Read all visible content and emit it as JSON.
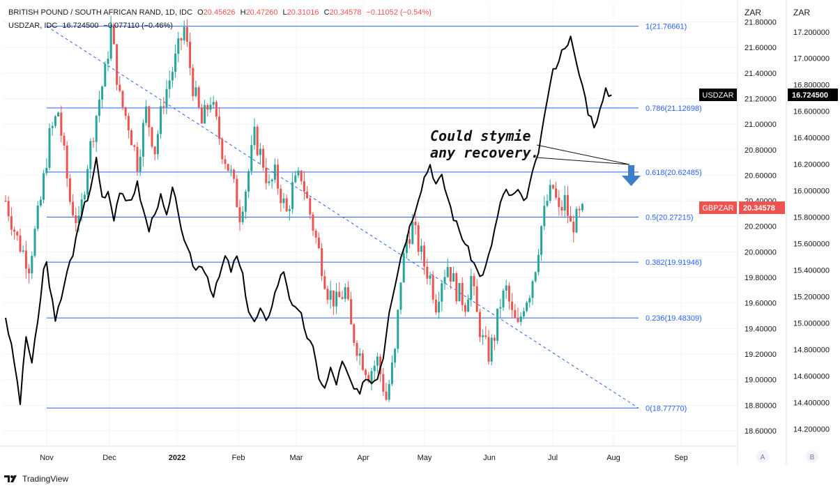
{
  "header": {
    "line1": {
      "symbol": "BRITISH POUND / SOUTH AFRICAN RAND, 1D, IDC",
      "o_label": "O",
      "o": "20.45626",
      "h_label": "H",
      "h": "20.47260",
      "l_label": "L",
      "l": "20.31016",
      "c_label": "C",
      "c": "20.34578",
      "chg": "−0.11052 (−0.54%)"
    },
    "line2": {
      "symbol": "USDZAR, IDC",
      "value": "16.724500",
      "chg": "−0.077110 (−0.46%)"
    }
  },
  "annotation": {
    "line1": "Could stymie",
    "line2": "any recovery."
  },
  "footer": {
    "brand": "TradingView"
  },
  "colors": {
    "up": "#26a69a",
    "down": "#ef5350",
    "fib": "#2962ff",
    "usdzar": "#000000",
    "arrow": "#3d7fc7",
    "gbpzar_label": "#ef5350"
  },
  "chart_data": {
    "type": "line",
    "x_axis": {
      "labels": [
        "Nov",
        "Dec",
        "2022",
        "Feb",
        "Mar",
        "Apr",
        "May",
        "Jun",
        "Jul",
        "Aug",
        "Sep"
      ]
    },
    "y_axis_a": {
      "title": "ZAR",
      "ticks": [
        "18.60000",
        "18.80000",
        "19.00000",
        "19.20000",
        "19.40000",
        "19.60000",
        "19.80000",
        "20.00000",
        "20.20000",
        "20.40000",
        "20.60000",
        "20.80000",
        "21.00000",
        "21.20000",
        "21.40000",
        "21.60000",
        "21.80000"
      ],
      "range": [
        18.48,
        21.95
      ],
      "button": "A"
    },
    "y_axis_b": {
      "title": "ZAR",
      "ticks": [
        "14.200000",
        "14.400000",
        "14.600000",
        "14.800000",
        "15.000000",
        "15.200000",
        "15.400000",
        "15.600000",
        "15.800000",
        "16.000000",
        "16.200000",
        "16.400000",
        "16.600000",
        "16.800000",
        "17.000000",
        "17.200000"
      ],
      "range": [
        14.07,
        17.42
      ],
      "button": "B"
    },
    "fib_levels": [
      {
        "label": "1(21.76661)",
        "value": 21.76661
      },
      {
        "label": "0.786(21.12698)",
        "value": 21.12698
      },
      {
        "label": "0.618(20.62485)",
        "value": 20.62485
      },
      {
        "label": "0.5(20.27215)",
        "value": 20.27215
      },
      {
        "label": "0.382(19.91946)",
        "value": 19.91946
      },
      {
        "label": "0.236(19.48309)",
        "value": 19.48309
      },
      {
        "label": "0(18.77770)",
        "value": 18.7777
      }
    ],
    "series": [
      {
        "name": "GBPZAR",
        "axis": "A",
        "style": "candles",
        "last_label": "20.34578",
        "path": [
          [
            0,
            20.4
          ],
          [
            4,
            20.1
          ],
          [
            8,
            19.9
          ],
          [
            12,
            20.4
          ],
          [
            15,
            20.9
          ],
          [
            18,
            21.1
          ],
          [
            22,
            20.4
          ],
          [
            25,
            20.2
          ],
          [
            28,
            20.7
          ],
          [
            32,
            21.2
          ],
          [
            34,
            21.4
          ],
          [
            36,
            21.75
          ],
          [
            39,
            21.2
          ],
          [
            42,
            21.0
          ],
          [
            45,
            20.7
          ],
          [
            48,
            21.1
          ],
          [
            51,
            20.8
          ],
          [
            54,
            21.2
          ],
          [
            58,
            21.5
          ],
          [
            61,
            21.75
          ],
          [
            64,
            21.3
          ],
          [
            67,
            21.0
          ],
          [
            70,
            21.2
          ],
          [
            74,
            20.8
          ],
          [
            77,
            20.6
          ],
          [
            80,
            20.3
          ],
          [
            82,
            20.5
          ],
          [
            85,
            20.9
          ],
          [
            88,
            20.7
          ],
          [
            90,
            20.5
          ],
          [
            92,
            20.6
          ],
          [
            96,
            20.3
          ],
          [
            98,
            20.5
          ],
          [
            101,
            20.6
          ],
          [
            104,
            20.3
          ],
          [
            106,
            20.1
          ],
          [
            108,
            19.9
          ],
          [
            110,
            19.7
          ],
          [
            113,
            19.6
          ],
          [
            116,
            19.7
          ],
          [
            118,
            19.4
          ],
          [
            121,
            19.2
          ],
          [
            124,
            19.05
          ],
          [
            127,
            19.15
          ],
          [
            130,
            18.85
          ],
          [
            133,
            19.2
          ],
          [
            135,
            19.8
          ],
          [
            137,
            20.1
          ],
          [
            139,
            20.2
          ],
          [
            141,
            20.05
          ],
          [
            143,
            19.9
          ],
          [
            145,
            19.8
          ],
          [
            147,
            19.6
          ],
          [
            149,
            19.8
          ],
          [
            151,
            19.9
          ],
          [
            154,
            19.7
          ],
          [
            157,
            19.6
          ],
          [
            159,
            19.8
          ],
          [
            161,
            19.5
          ],
          [
            163,
            19.3
          ],
          [
            165,
            19.2
          ],
          [
            167,
            19.35
          ],
          [
            169,
            19.6
          ],
          [
            171,
            19.7
          ],
          [
            173,
            19.5
          ],
          [
            175,
            19.4
          ],
          [
            177,
            19.6
          ],
          [
            179,
            19.7
          ],
          [
            181,
            19.9
          ],
          [
            183,
            20.2
          ],
          [
            185,
            20.4
          ],
          [
            187,
            20.5
          ],
          [
            189,
            20.3
          ],
          [
            191,
            20.4
          ],
          [
            193,
            20.2
          ],
          [
            195,
            20.25
          ],
          [
            197,
            20.3
          ]
        ]
      },
      {
        "name": "USDZAR",
        "axis": "B",
        "style": "line",
        "last_label": "16.724500",
        "path": [
          [
            0,
            15.05
          ],
          [
            3,
            14.7
          ],
          [
            5,
            14.4
          ],
          [
            7,
            14.9
          ],
          [
            9,
            14.7
          ],
          [
            11,
            15.0
          ],
          [
            13,
            15.4
          ],
          [
            14,
            15.45
          ],
          [
            15,
            15.3
          ],
          [
            17,
            15.0
          ],
          [
            19,
            15.2
          ],
          [
            21,
            15.4
          ],
          [
            23,
            15.5
          ],
          [
            25,
            15.75
          ],
          [
            27,
            15.9
          ],
          [
            29,
            16.0
          ],
          [
            31,
            16.25
          ],
          [
            33,
            15.95
          ],
          [
            35,
            16.0
          ],
          [
            37,
            15.8
          ],
          [
            39,
            16.0
          ],
          [
            41,
            15.9
          ],
          [
            43,
            15.95
          ],
          [
            45,
            16.05
          ],
          [
            47,
            15.85
          ],
          [
            49,
            15.7
          ],
          [
            51,
            15.85
          ],
          [
            53,
            15.95
          ],
          [
            55,
            15.8
          ],
          [
            57,
            16.0
          ],
          [
            59,
            15.85
          ],
          [
            61,
            15.6
          ],
          [
            63,
            15.5
          ],
          [
            65,
            15.4
          ],
          [
            67,
            15.45
          ],
          [
            69,
            15.35
          ],
          [
            71,
            15.2
          ],
          [
            73,
            15.35
          ],
          [
            75,
            15.5
          ],
          [
            77,
            15.4
          ],
          [
            79,
            15.5
          ],
          [
            81,
            15.35
          ],
          [
            83,
            15.1
          ],
          [
            85,
            15.0
          ],
          [
            87,
            15.1
          ],
          [
            89,
            15.0
          ],
          [
            91,
            15.15
          ],
          [
            93,
            15.3
          ],
          [
            95,
            15.4
          ],
          [
            97,
            15.2
          ],
          [
            99,
            15.1
          ],
          [
            101,
            15.05
          ],
          [
            103,
            14.9
          ],
          [
            105,
            14.8
          ],
          [
            107,
            14.6
          ],
          [
            109,
            14.5
          ],
          [
            111,
            14.65
          ],
          [
            113,
            14.55
          ],
          [
            115,
            14.7
          ],
          [
            117,
            14.6
          ],
          [
            119,
            14.5
          ],
          [
            121,
            14.45
          ],
          [
            123,
            14.6
          ],
          [
            125,
            14.55
          ],
          [
            127,
            14.6
          ],
          [
            129,
            14.75
          ],
          [
            131,
            15.1
          ],
          [
            133,
            15.3
          ],
          [
            135,
            15.5
          ],
          [
            137,
            15.65
          ],
          [
            139,
            15.8
          ],
          [
            141,
            15.95
          ],
          [
            143,
            16.1
          ],
          [
            145,
            16.2
          ],
          [
            147,
            16.05
          ],
          [
            149,
            16.1
          ],
          [
            151,
            15.95
          ],
          [
            153,
            15.8
          ],
          [
            155,
            15.7
          ],
          [
            157,
            15.6
          ],
          [
            159,
            15.5
          ],
          [
            161,
            15.4
          ],
          [
            163,
            15.35
          ],
          [
            165,
            15.5
          ],
          [
            167,
            15.7
          ],
          [
            169,
            15.9
          ],
          [
            171,
            16.0
          ],
          [
            173,
            15.95
          ],
          [
            175,
            16.0
          ],
          [
            177,
            15.9
          ],
          [
            179,
            16.05
          ],
          [
            181,
            16.2
          ],
          [
            183,
            16.4
          ],
          [
            185,
            16.7
          ],
          [
            187,
            16.9
          ],
          [
            189,
            17.0
          ],
          [
            191,
            17.1
          ],
          [
            193,
            17.15
          ],
          [
            195,
            16.95
          ],
          [
            197,
            16.8
          ],
          [
            199,
            16.6
          ],
          [
            201,
            16.5
          ],
          [
            203,
            16.6
          ],
          [
            205,
            16.75
          ],
          [
            207,
            16.72
          ]
        ]
      }
    ],
    "badges": [
      {
        "text": "USDZAR",
        "axis": "B",
        "value": 16.7245,
        "bg": "#000000"
      },
      {
        "text": "GBPZAR",
        "axis": "A",
        "value": 20.34578,
        "bg": "#ef5350"
      }
    ],
    "grid": true
  }
}
